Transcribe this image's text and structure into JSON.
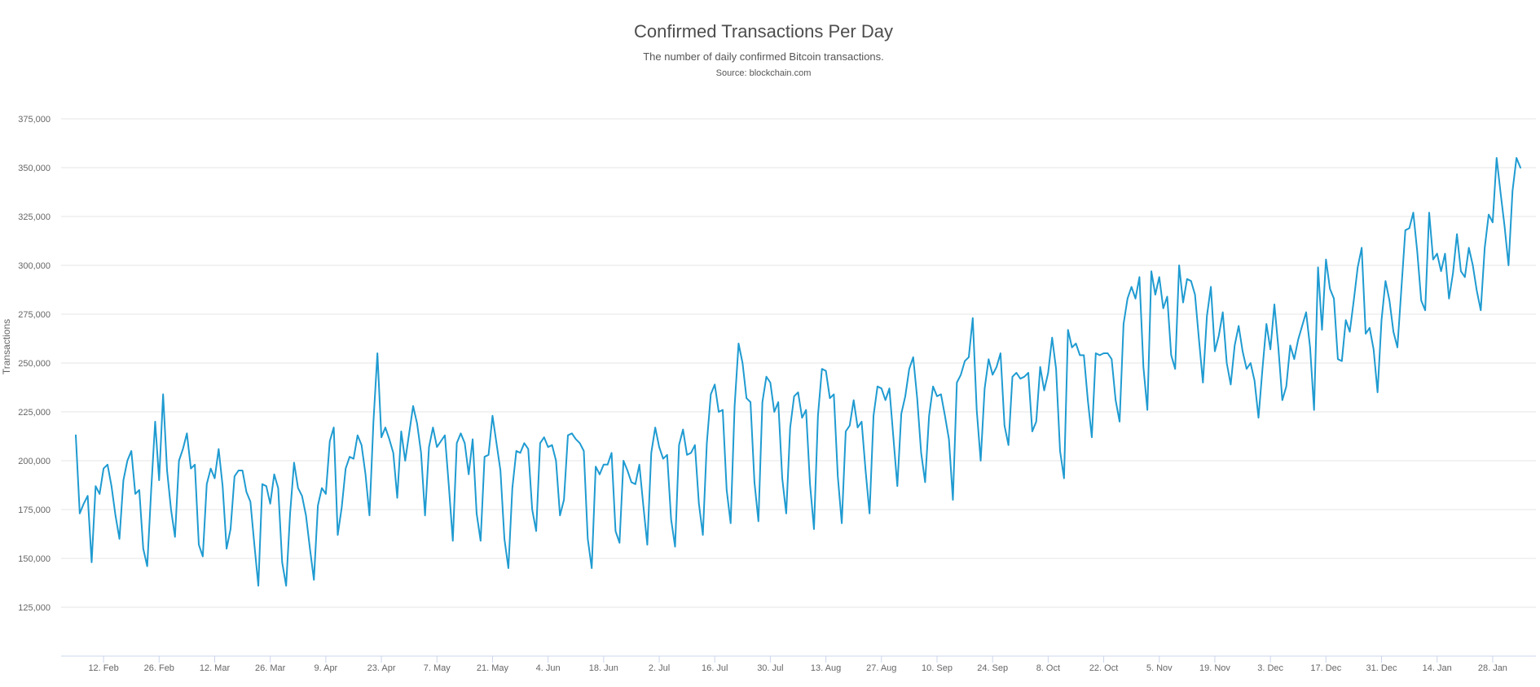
{
  "chart_data": {
    "type": "line",
    "title": "Confirmed Transactions Per Day",
    "subtitle": "The number of daily confirmed Bitcoin transactions.",
    "source": "Source: blockchain.com",
    "xlabel": "",
    "ylabel": "Transactions",
    "ylim": [
      100000,
      375000
    ],
    "y_ticks": [
      125000,
      150000,
      175000,
      200000,
      225000,
      250000,
      275000,
      300000,
      325000,
      350000,
      375000
    ],
    "y_tick_labels": [
      "125,000",
      "150,000",
      "175,000",
      "200,000",
      "225,000",
      "250,000",
      "275,000",
      "300,000",
      "325,000",
      "350,000",
      "375,000"
    ],
    "x_tick_labels": [
      "12. Feb",
      "26. Feb",
      "12. Mar",
      "26. Mar",
      "9. Apr",
      "23. Apr",
      "7. May",
      "21. May",
      "4. Jun",
      "18. Jun",
      "2. Jul",
      "16. Jul",
      "30. Jul",
      "13. Aug",
      "27. Aug",
      "10. Sep",
      "24. Sep",
      "8. Oct",
      "22. Oct",
      "5. Nov",
      "19. Nov",
      "3. Dec",
      "17. Dec",
      "31. Dec",
      "14. Jan",
      "28. Jan"
    ],
    "first_point_label": "5. Feb",
    "grid": true,
    "legend": "none",
    "line_color": "#1f9bd1",
    "series": [
      {
        "values": [
          213000,
          173000,
          178000,
          182000,
          148000,
          187000,
          183000,
          196000,
          198000,
          187000,
          172000,
          160000,
          190000,
          200000,
          205000,
          183000,
          185000,
          155000,
          146000,
          185000,
          220000,
          190000,
          234000,
          195000,
          175000,
          161000,
          200000,
          206000,
          214000,
          196000,
          198000,
          157000,
          151000,
          188000,
          196000,
          191000,
          206000,
          187000,
          155000,
          165000,
          192000,
          195000,
          195000,
          184000,
          179000,
          157000,
          136000,
          188000,
          187000,
          178000,
          193000,
          186000,
          148000,
          136000,
          173000,
          199000,
          186000,
          182000,
          172000,
          155000,
          139000,
          177000,
          186000,
          183000,
          210000,
          217000,
          162000,
          176000,
          196000,
          202000,
          201000,
          213000,
          208000,
          193000,
          172000,
          220000,
          255000,
          212000,
          217000,
          211000,
          204000,
          181000,
          215000,
          200000,
          214000,
          228000,
          219000,
          204000,
          172000,
          207000,
          217000,
          207000,
          210000,
          213000,
          187000,
          159000,
          209000,
          214000,
          209000,
          193000,
          211000,
          173000,
          159000,
          202000,
          203000,
          223000,
          209000,
          195000,
          160000,
          145000,
          186000,
          205000,
          204000,
          209000,
          206000,
          175000,
          164000,
          209000,
          212000,
          207000,
          208000,
          200000,
          172000,
          180000,
          213000,
          214000,
          211000,
          209000,
          205000,
          160000,
          145000,
          197000,
          193000,
          198000,
          198000,
          204000,
          164000,
          158000,
          200000,
          195000,
          189000,
          188000,
          198000,
          177000,
          157000,
          204000,
          217000,
          207000,
          201000,
          203000,
          170000,
          156000,
          208000,
          216000,
          203000,
          204000,
          208000,
          178000,
          162000,
          209000,
          234000,
          239000,
          225000,
          226000,
          185000,
          168000,
          228000,
          260000,
          250000,
          232000,
          230000,
          189000,
          169000,
          230000,
          243000,
          240000,
          225000,
          230000,
          191000,
          173000,
          217000,
          233000,
          235000,
          222000,
          226000,
          188000,
          165000,
          223000,
          247000,
          246000,
          232000,
          234000,
          192000,
          168000,
          215000,
          218000,
          231000,
          217000,
          220000,
          195000,
          173000,
          223000,
          238000,
          237000,
          231000,
          237000,
          212000,
          187000,
          224000,
          233000,
          247000,
          253000,
          232000,
          204000,
          189000,
          223000,
          238000,
          233000,
          234000,
          223000,
          211000,
          180000,
          240000,
          244000,
          251000,
          253000,
          273000,
          226000,
          200000,
          237000,
          252000,
          244000,
          248000,
          255000,
          218000,
          208000,
          243000,
          245000,
          242000,
          243000,
          245000,
          215000,
          220000,
          248000,
          236000,
          245000,
          263000,
          247000,
          205000,
          191000,
          267000,
          258000,
          260000,
          254000,
          254000,
          231000,
          212000,
          255000,
          254000,
          255000,
          255000,
          252000,
          231000,
          220000,
          270000,
          283000,
          289000,
          283000,
          294000,
          248000,
          226000,
          297000,
          285000,
          294000,
          278000,
          284000,
          254000,
          247000,
          300000,
          281000,
          293000,
          292000,
          285000,
          262000,
          240000,
          274000,
          289000,
          256000,
          264000,
          276000,
          250000,
          239000,
          259000,
          269000,
          256000,
          247000,
          250000,
          241000,
          222000,
          247000,
          270000,
          257000,
          280000,
          258000,
          231000,
          238000,
          259000,
          252000,
          262000,
          269000,
          276000,
          258000,
          226000,
          299000,
          267000,
          303000,
          288000,
          283000,
          252000,
          251000,
          272000,
          266000,
          282000,
          299000,
          309000,
          265000,
          268000,
          257000,
          235000,
          272000,
          292000,
          282000,
          266000,
          258000,
          288000,
          318000,
          319000,
          327000,
          307000,
          282000,
          277000,
          327000,
          303000,
          306000,
          297000,
          306000,
          283000,
          296000,
          316000,
          297000,
          294000,
          309000,
          300000,
          287000,
          277000,
          309000,
          326000,
          322000,
          355000,
          337000,
          320000,
          300000,
          338000,
          355000,
          350000
        ]
      }
    ]
  }
}
